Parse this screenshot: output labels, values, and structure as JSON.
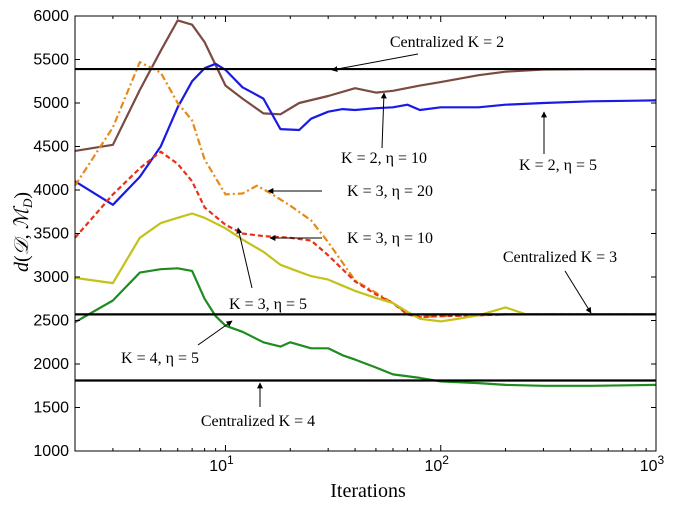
{
  "chart_data": {
    "type": "line",
    "xscale": "log",
    "xlim": [
      2,
      1000
    ],
    "ylim": [
      1000,
      6000
    ],
    "xlabel": "Iterations",
    "ylabel": "d(𝒟, ℳ_D)",
    "x_ticks": [
      {
        "value": 10,
        "base": "10",
        "exp": "1"
      },
      {
        "value": 100,
        "base": "10",
        "exp": "2"
      },
      {
        "value": 1000,
        "base": "10",
        "exp": "3"
      }
    ],
    "y_ticks": [
      "1000",
      "1500",
      "2000",
      "2500",
      "3000",
      "3500",
      "4000",
      "4500",
      "5000",
      "5500",
      "6000"
    ],
    "colors": {
      "k2_eta10": "#7b4a41",
      "k2_eta5": "#1a1ae6",
      "k3_eta20": "#e6891a",
      "k3_eta10": "#e6301a",
      "k3_eta5": "#c2c21a",
      "k4_eta5": "#1e8c1e",
      "centralized": "#000000"
    },
    "baselines": [
      {
        "label": "Centralized K = 2",
        "y": 5390
      },
      {
        "label": "Centralized K = 3",
        "y": 2570
      },
      {
        "label": "Centralized K = 4",
        "y": 1810
      }
    ],
    "series": [
      {
        "name": "K = 2, η = 10",
        "key": "k2_eta10",
        "x": [
          2,
          3,
          4,
          5,
          6,
          7,
          8,
          10,
          12,
          15,
          18,
          22,
          30,
          40,
          50,
          60,
          80,
          100,
          150,
          200,
          300,
          500,
          1000
        ],
        "y": [
          4450,
          4520,
          5150,
          5600,
          5950,
          5900,
          5700,
          5200,
          5050,
          4880,
          4870,
          5000,
          5080,
          5170,
          5120,
          5140,
          5200,
          5240,
          5320,
          5360,
          5385,
          5390,
          5390
        ]
      },
      {
        "name": "K = 2, η = 5",
        "key": "k2_eta5",
        "x": [
          2,
          3,
          4,
          5,
          6,
          7,
          8,
          9,
          10,
          12,
          15,
          18,
          22,
          25,
          30,
          35,
          40,
          50,
          60,
          70,
          80,
          100,
          150,
          200,
          300,
          500,
          1000
        ],
        "y": [
          4100,
          3830,
          4150,
          4500,
          4950,
          5250,
          5400,
          5450,
          5380,
          5180,
          5050,
          4700,
          4690,
          4820,
          4900,
          4930,
          4920,
          4940,
          4950,
          4980,
          4920,
          4950,
          4950,
          4980,
          5000,
          5020,
          5030
        ]
      },
      {
        "name": "K = 3, η = 20",
        "key": "k3_eta20",
        "x": [
          2,
          3,
          4,
          5,
          6,
          7,
          8,
          10,
          12,
          14,
          16,
          20,
          25,
          30,
          40,
          50,
          60,
          70,
          80,
          100,
          150,
          200,
          300,
          1000
        ],
        "y": [
          4050,
          4720,
          5470,
          5350,
          5000,
          4800,
          4350,
          3950,
          3960,
          4050,
          3970,
          3820,
          3650,
          3400,
          2960,
          2820,
          2700,
          2580,
          2540,
          2550,
          2560,
          2570,
          2570,
          2570
        ]
      },
      {
        "name": "K = 3, η = 10",
        "key": "k3_eta10",
        "x": [
          2,
          3,
          4,
          5,
          6,
          7,
          8,
          10,
          12,
          15,
          20,
          25,
          30,
          40,
          50,
          60,
          70,
          80,
          100,
          150,
          200,
          300,
          1000
        ],
        "y": [
          3450,
          3950,
          4250,
          4440,
          4300,
          4100,
          3800,
          3600,
          3500,
          3470,
          3450,
          3420,
          3250,
          2950,
          2800,
          2700,
          2570,
          2540,
          2550,
          2560,
          2570,
          2570,
          2570
        ]
      },
      {
        "name": "K = 3, η = 5",
        "key": "k3_eta5",
        "x": [
          2,
          3,
          4,
          5,
          6,
          7,
          8,
          10,
          12,
          15,
          18,
          22,
          25,
          30,
          35,
          40,
          50,
          60,
          70,
          80,
          100,
          120,
          150,
          200,
          250,
          1000
        ],
        "y": [
          2990,
          2930,
          3450,
          3620,
          3680,
          3730,
          3680,
          3560,
          3430,
          3290,
          3140,
          3060,
          3010,
          2970,
          2900,
          2840,
          2760,
          2700,
          2600,
          2520,
          2490,
          2520,
          2560,
          2650,
          2570,
          2570
        ]
      },
      {
        "name": "K = 4, η = 5",
        "key": "k4_eta5",
        "x": [
          2,
          3,
          4,
          5,
          6,
          7,
          8,
          9,
          10,
          12,
          15,
          18,
          20,
          25,
          30,
          35,
          40,
          50,
          60,
          80,
          100,
          150,
          200,
          300,
          500,
          1000
        ],
        "y": [
          2480,
          2730,
          3050,
          3090,
          3100,
          3070,
          2750,
          2550,
          2440,
          2370,
          2250,
          2200,
          2250,
          2180,
          2180,
          2100,
          2050,
          1960,
          1880,
          1840,
          1800,
          1780,
          1760,
          1750,
          1750,
          1760
        ]
      }
    ],
    "annotations": [
      {
        "id": "c2",
        "label": "Centralized K = 2"
      },
      {
        "id": "k2e10",
        "label": "K = 2, η = 10"
      },
      {
        "id": "k2e5",
        "label": "K = 2, η = 5"
      },
      {
        "id": "k3e20",
        "label": "K = 3, η = 20"
      },
      {
        "id": "k3e10",
        "label": "K = 3, η = 10"
      },
      {
        "id": "c3",
        "label": "Centralized K = 3"
      },
      {
        "id": "k3e5",
        "label": "K = 3, η = 5"
      },
      {
        "id": "k4e5",
        "label": "K = 4, η = 5"
      },
      {
        "id": "c4",
        "label": "Centralized K = 4"
      }
    ]
  }
}
